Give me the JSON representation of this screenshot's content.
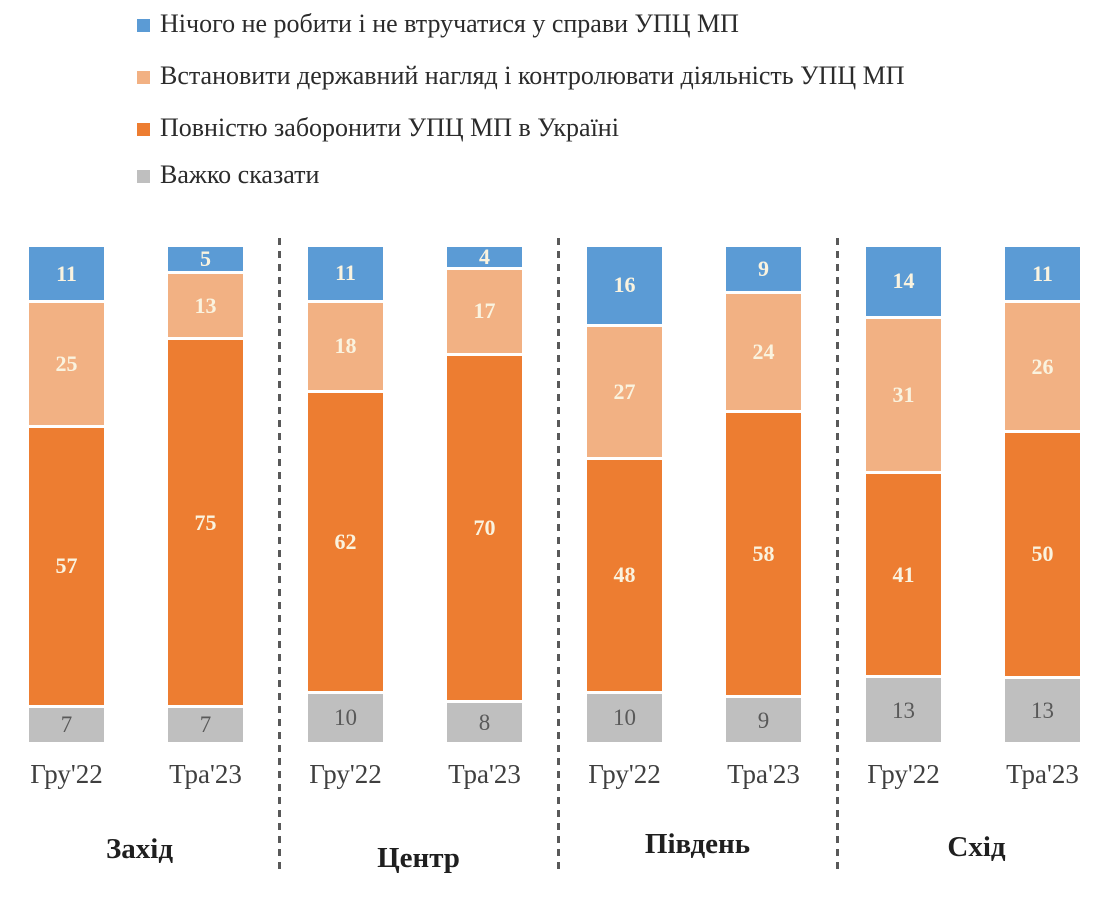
{
  "chart_data": {
    "type": "bar",
    "variant": "stacked-100-percent-columns",
    "unit": "percent",
    "ylim": [
      0,
      100
    ],
    "grid": false,
    "legend_position": "top-left",
    "categories": [
      "Гру'22",
      "Тра'23"
    ],
    "legend": [
      {
        "key": "do-nothing",
        "label": "Нічого не робити і не втручатися у справи УПЦ МП",
        "color": "#5B9BD5"
      },
      {
        "key": "state-oversight",
        "label": "Встановити державний нагляд і контролювати діяльність УПЦ МП",
        "color": "#F2B183"
      },
      {
        "key": "full-ban",
        "label": "Повністю заборонити УПЦ МП в Україні",
        "color": "#ED7D31"
      },
      {
        "key": "hard-to-say",
        "label": "Важко сказати",
        "color": "#BFBFBF"
      }
    ],
    "regions": [
      {
        "name": "Захід",
        "bars": [
          {
            "category": "Гру'22",
            "values": [
              11,
              25,
              57,
              7
            ]
          },
          {
            "category": "Тра'23",
            "values": [
              5,
              13,
              75,
              7
            ]
          }
        ]
      },
      {
        "name": "Центр",
        "bars": [
          {
            "category": "Гру'22",
            "values": [
              11,
              18,
              62,
              10
            ]
          },
          {
            "category": "Тра'23",
            "values": [
              4,
              17,
              70,
              8
            ]
          }
        ]
      },
      {
        "name": "Південь",
        "bars": [
          {
            "category": "Гру'22",
            "values": [
              16,
              27,
              48,
              10
            ]
          },
          {
            "category": "Тра'23",
            "values": [
              9,
              24,
              58,
              9
            ]
          }
        ]
      },
      {
        "name": "Схід",
        "bars": [
          {
            "category": "Гру'22",
            "values": [
              14,
              31,
              41,
              13
            ]
          },
          {
            "category": "Тра'23",
            "values": [
              11,
              26,
              50,
              13
            ]
          }
        ]
      }
    ],
    "colors": {
      "value_label_light": "#FAF3DF",
      "value_label_dark": "#595959",
      "axis_label": "#3F3F3F",
      "region_label": "#1F1F1F",
      "legend_text": "#2B2B2B",
      "divider": "#595959",
      "background": "#FFFFFF"
    }
  }
}
